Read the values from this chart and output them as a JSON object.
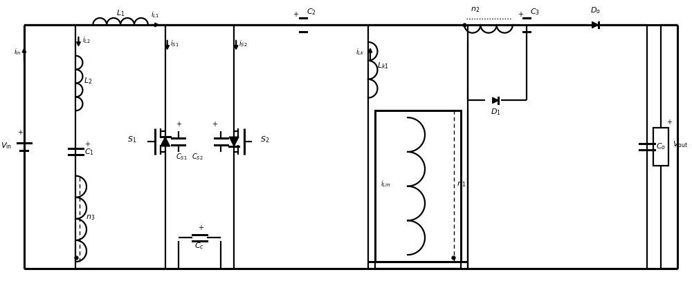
{
  "fig_width": 10.0,
  "fig_height": 4.2,
  "dpi": 100,
  "bg_color": "#ffffff",
  "lc": "#000000",
  "lw": 1.6,
  "lw2": 2.2
}
